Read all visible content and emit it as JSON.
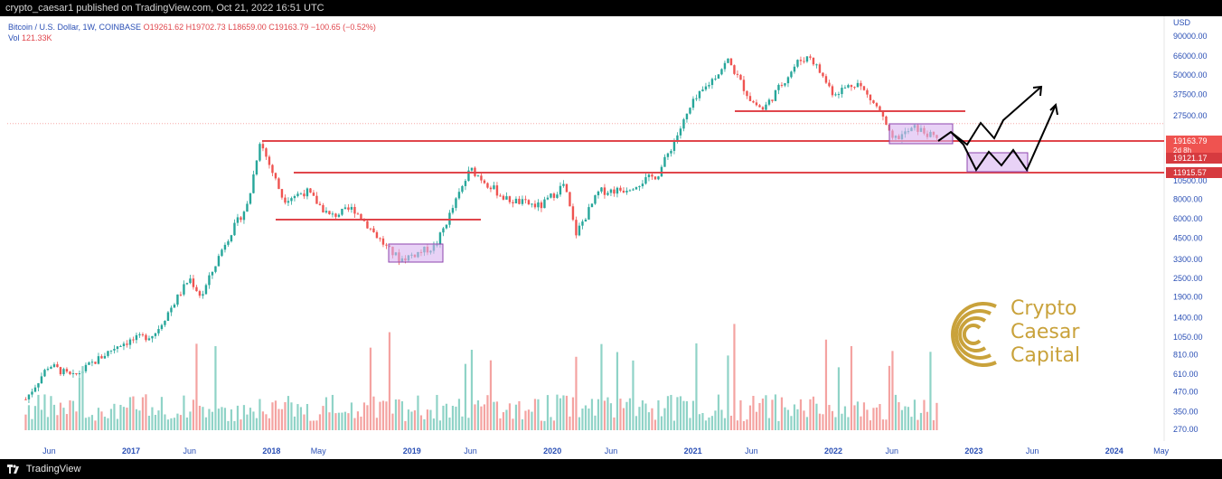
{
  "header": {
    "publisher_text": "crypto_caesar1 published on TradingView.com, Oct 21, 2022 16:51 UTC"
  },
  "symbol": {
    "title": "Bitcoin / U.S. Dollar, 1W, COINBASE",
    "open": "O19261.62",
    "high": "H19702.73",
    "low": "L18659.00",
    "close": "C19163.79",
    "change": "−100.65 (−0.52%)",
    "vol_label": "Vol",
    "vol_value": "121.33K"
  },
  "price_axis": {
    "currency": "USD",
    "ticks": [
      "90000.00",
      "66000.00",
      "50000.00",
      "37500.00",
      "27500.00",
      "10500.00",
      "8000.00",
      "6000.00",
      "4500.00",
      "3300.00",
      "2500.00",
      "1900.00",
      "1400.00",
      "1050.00",
      "810.00",
      "610.00",
      "470.00",
      "350.00",
      "270.00"
    ],
    "price_label": "19163.79",
    "countdown": "2d 8h",
    "level_upper": "19121.17",
    "level_lower": "11915.57"
  },
  "time_axis": {
    "labels": [
      "Jun",
      "2017",
      "Jun",
      "2018",
      "May",
      "2019",
      "Jun",
      "2020",
      "Jun",
      "2021",
      "Jun",
      "2022",
      "Jun",
      "2023",
      "Jun",
      "2024",
      "May"
    ]
  },
  "footer": {
    "brand": "TradingView"
  },
  "watermark": {
    "line1": "Crypto",
    "line2": "Caesar",
    "line3": "Capital"
  },
  "colors": {
    "up": "#26a69a",
    "down": "#ef5350",
    "level_line": "#e0464c",
    "box_fill": "#d8b4f0",
    "box_stroke": "#8e44ad",
    "axis_text": "#2a4fb5",
    "gold": "#c9a23b"
  },
  "chart_data": {
    "type": "candlestick",
    "scale": "log",
    "levels": [
      19121.17,
      11915.57
    ],
    "last_close": 19163.79,
    "path": [
      [
        "2016-04",
        420
      ],
      [
        "2016-06",
        700
      ],
      [
        "2016-08",
        580
      ],
      [
        "2016-12",
        950
      ],
      [
        "2017-03",
        1100
      ],
      [
        "2017-06",
        2500
      ],
      [
        "2017-07",
        1900
      ],
      [
        "2017-09",
        4200
      ],
      [
        "2017-11",
        7500
      ],
      [
        "2017-12",
        19000
      ],
      [
        "2018-02",
        8000
      ],
      [
        "2018-04",
        9000
      ],
      [
        "2018-06",
        6200
      ],
      [
        "2018-08",
        7000
      ],
      [
        "2018-11",
        3800
      ],
      [
        "2018-12",
        3300
      ],
      [
        "2019-03",
        4000
      ],
      [
        "2019-06",
        12500
      ],
      [
        "2019-09",
        8000
      ],
      [
        "2019-12",
        7200
      ],
      [
        "2020-02",
        10000
      ],
      [
        "2020-03",
        4800
      ],
      [
        "2020-05",
        9000
      ],
      [
        "2020-07",
        9200
      ],
      [
        "2020-10",
        11500
      ],
      [
        "2021-01",
        33000
      ],
      [
        "2021-04",
        62000
      ],
      [
        "2021-06",
        34000
      ],
      [
        "2021-07",
        30000
      ],
      [
        "2021-10",
        61000
      ],
      [
        "2021-11",
        66000
      ],
      [
        "2022-01",
        38000
      ],
      [
        "2022-03",
        45000
      ],
      [
        "2022-05",
        29000
      ],
      [
        "2022-06",
        19000
      ],
      [
        "2022-08",
        23000
      ],
      [
        "2022-10",
        19163.79
      ]
    ]
  }
}
